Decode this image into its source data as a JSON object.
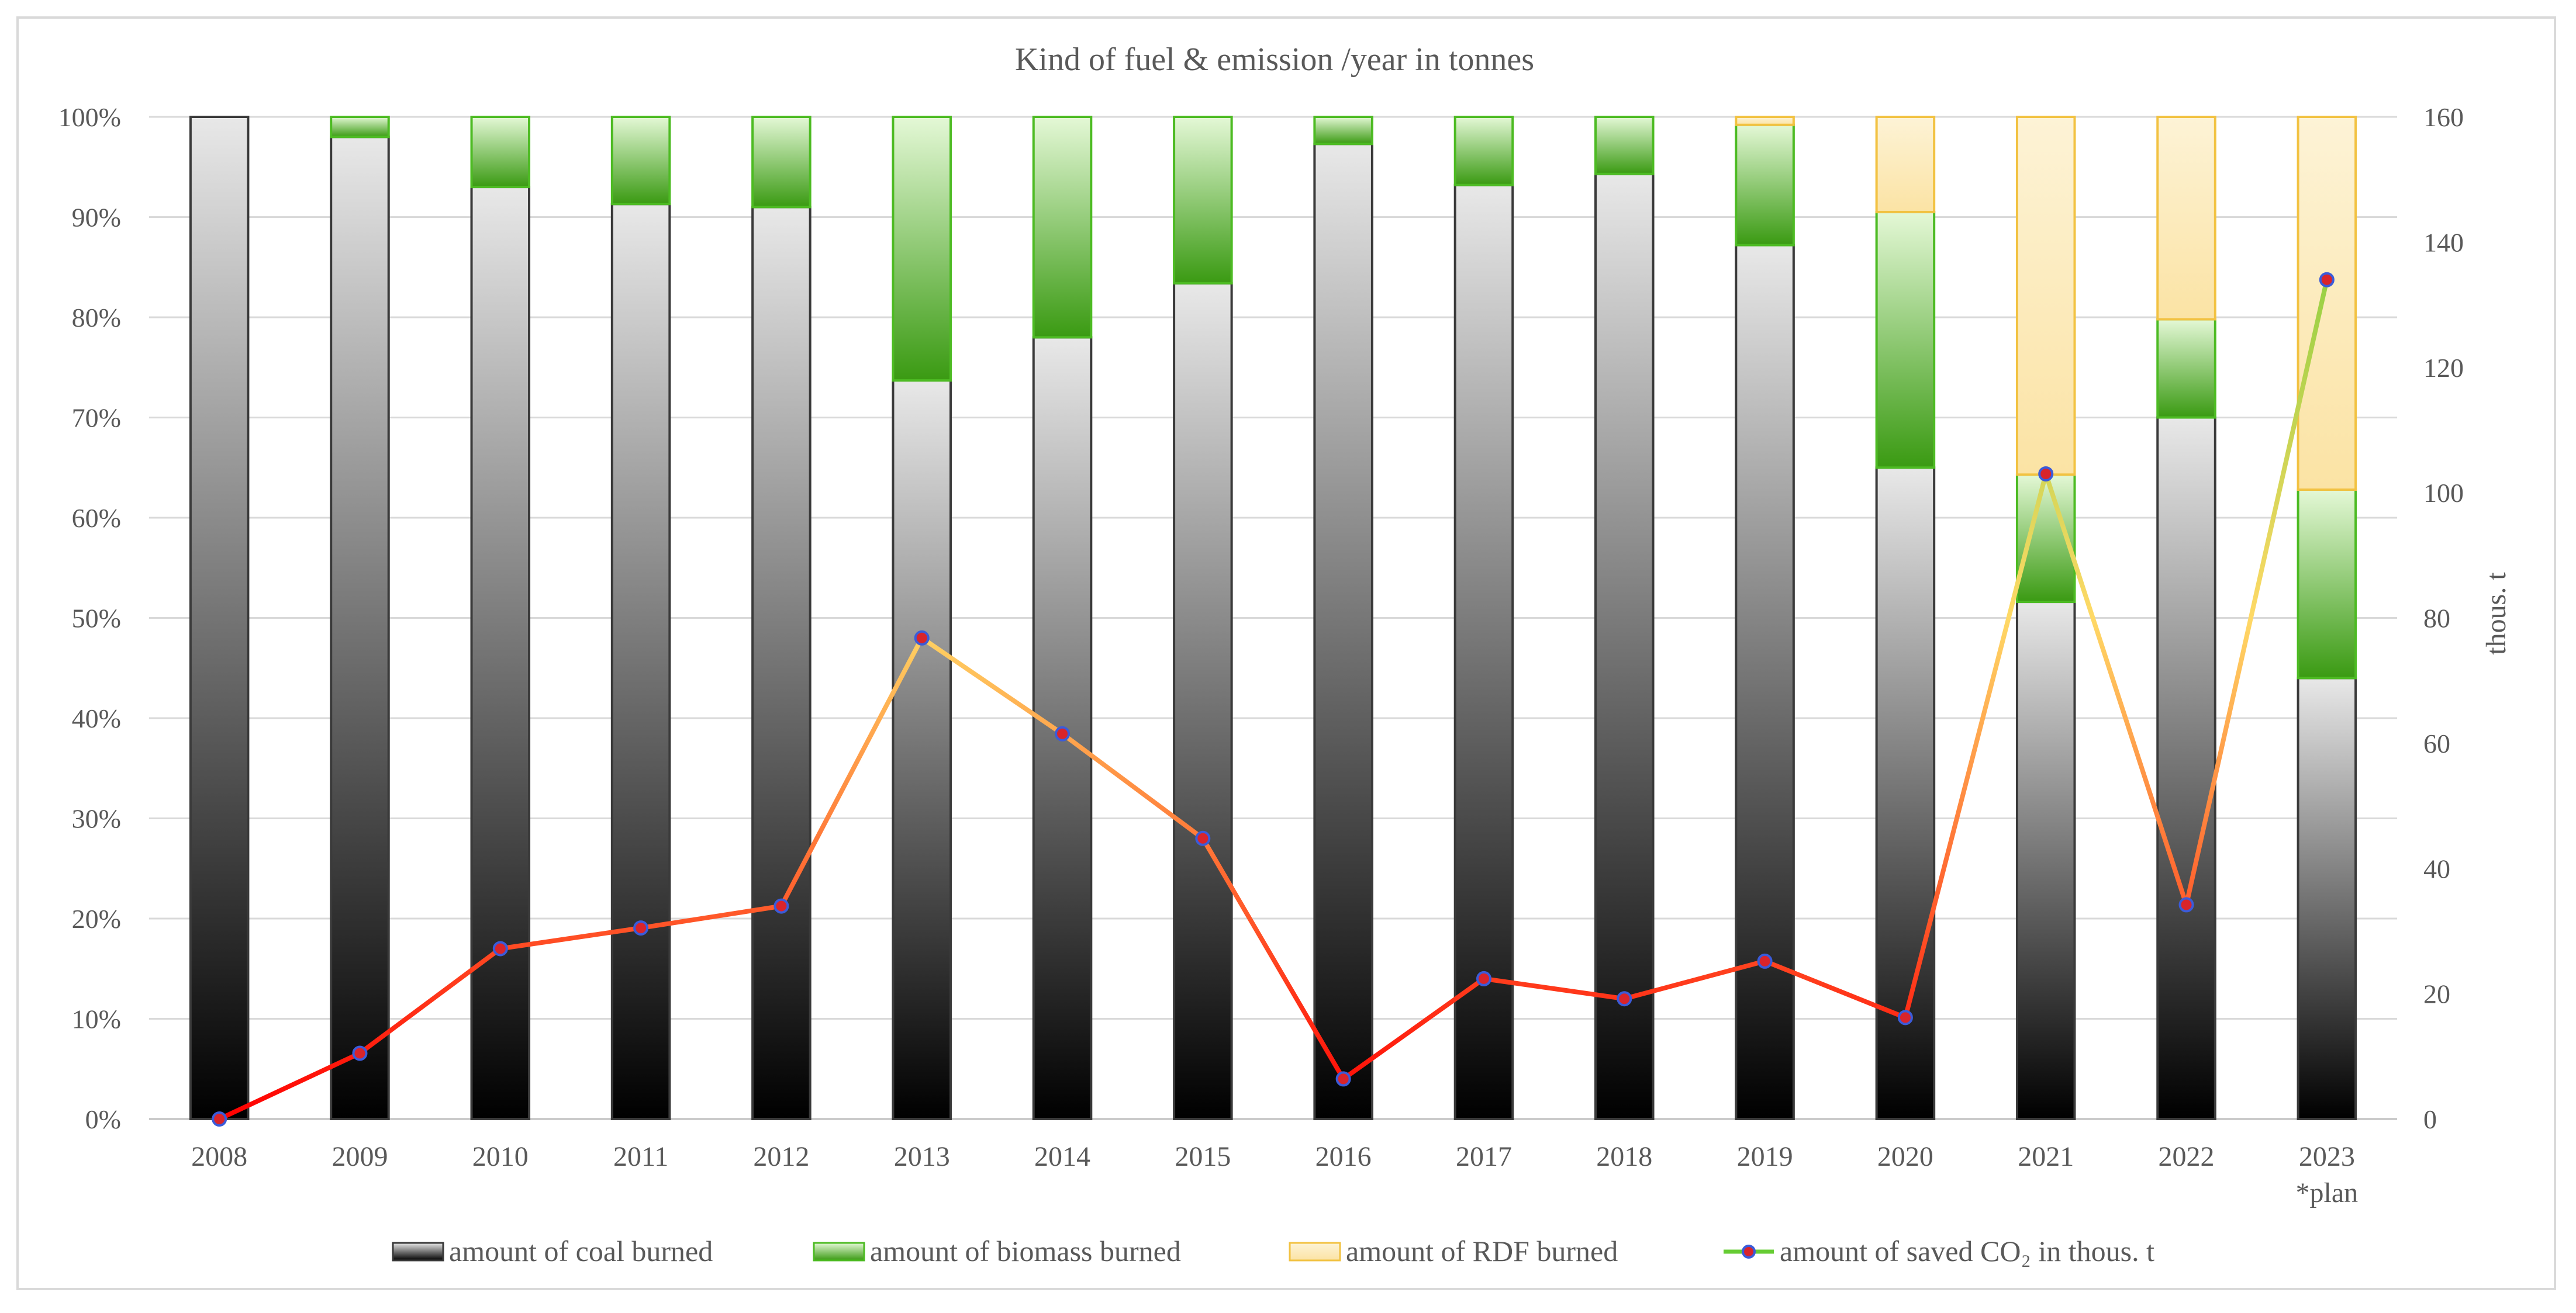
{
  "chart_data": {
    "type": "bar",
    "stacked": true,
    "percent_stacked": true,
    "title": "Kind of fuel & emission /year in tonnes",
    "categories": [
      "2008",
      "2009",
      "2010",
      "2011",
      "2012",
      "2013",
      "2014",
      "2015",
      "2016",
      "2017",
      "2018",
      "2019",
      "2020",
      "2021",
      "2022",
      "2023"
    ],
    "category_notes": {
      "2023": "*plan"
    },
    "ylim": [
      0,
      100
    ],
    "yticks": [
      "0%",
      "10%",
      "20%",
      "30%",
      "40%",
      "50%",
      "60%",
      "70%",
      "80%",
      "90%",
      "100%"
    ],
    "y2label": "thous. t",
    "y2lim": [
      0,
      160
    ],
    "y2ticks": [
      "0",
      "20",
      "40",
      "60",
      "80",
      "100",
      "120",
      "140",
      "160"
    ],
    "series": [
      {
        "name": "amount of coal burned",
        "kind": "bar",
        "axis": "left",
        "values": [
          100,
          98,
          93,
          91.3,
          91,
          73.7,
          78,
          83.4,
          97.3,
          93.2,
          94.3,
          87.2,
          65,
          51.6,
          70,
          44
        ]
      },
      {
        "name": "amount of biomass burned",
        "kind": "bar",
        "axis": "left",
        "values": [
          0,
          2,
          7,
          8.7,
          9,
          26.3,
          22,
          16.6,
          2.7,
          6.8,
          5.7,
          12,
          25.5,
          12.7,
          9.8,
          18.8
        ]
      },
      {
        "name": "amount of RDF burned",
        "kind": "bar",
        "axis": "left",
        "values": [
          0,
          0,
          0,
          0,
          0,
          0,
          0,
          0,
          0,
          0,
          0,
          0.8,
          9.5,
          35.7,
          20.2,
          37.2
        ]
      },
      {
        "name": "amount of saved CO₂ in thous. t",
        "kind": "line",
        "axis": "right",
        "values": [
          0,
          10.5,
          27.2,
          30.5,
          34,
          76.8,
          61.5,
          44.8,
          6.4,
          22.4,
          19.2,
          25.2,
          16.2,
          103,
          34.2,
          134
        ]
      }
    ],
    "colors": {
      "coal_top": "#e8e8e8",
      "coal_bottom": "#000000",
      "coal_border": "#3a3a3a",
      "biomass_top": "#e4f8d6",
      "biomass_bottom": "#3a9a12",
      "biomass_border": "#4dbb23",
      "rdf_top": "#fdf3d6",
      "rdf_bottom": "#fbe3a4",
      "rdf_border": "#f2c242",
      "line_low": "#ff0000",
      "line_mid": "#ffd966",
      "line_high": "#66cc33",
      "marker_fill": "#d9242b",
      "marker_edge": "#3b5bd9",
      "grid": "#d9d9d9",
      "axis": "#bfbfbf",
      "text": "#595959"
    },
    "legend": {
      "position": "bottom"
    }
  }
}
